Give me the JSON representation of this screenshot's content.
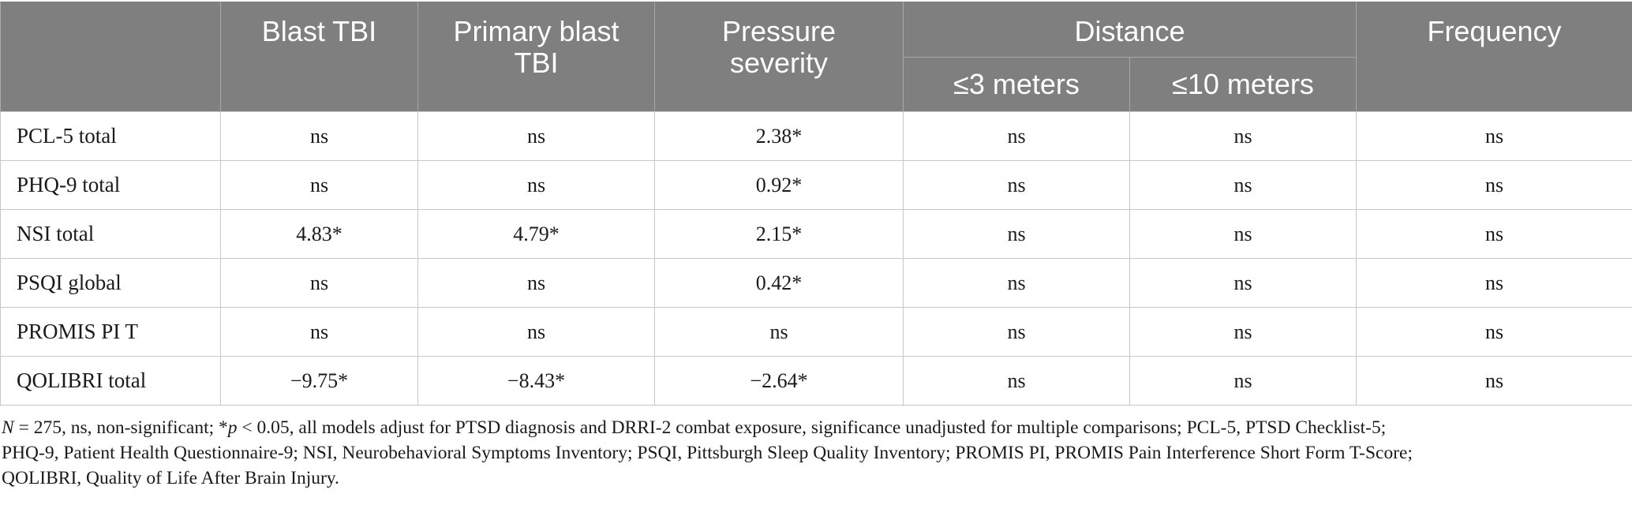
{
  "table": {
    "header": {
      "blank": "",
      "blast_tbi": "Blast TBI",
      "primary_blast_tbi_line1": "Primary blast",
      "primary_blast_tbi_line2": "TBI",
      "pressure_line1": "Pressure",
      "pressure_line2": "severity",
      "distance": "Distance",
      "distance_3": "≤3 meters",
      "distance_10": "≤10 meters",
      "frequency": "Frequency"
    },
    "rows": [
      {
        "label": "PCL-5 total",
        "cells": [
          "ns",
          "ns",
          "2.38*",
          "ns",
          "ns",
          "ns"
        ]
      },
      {
        "label": "PHQ-9 total",
        "cells": [
          "ns",
          "ns",
          "0.92*",
          "ns",
          "ns",
          "ns"
        ]
      },
      {
        "label": "NSI total",
        "cells": [
          "4.83*",
          "4.79*",
          "2.15*",
          "ns",
          "ns",
          "ns"
        ]
      },
      {
        "label": "PSQI global",
        "cells": [
          "ns",
          "ns",
          "0.42*",
          "ns",
          "ns",
          "ns"
        ]
      },
      {
        "label": "PROMIS PI T",
        "cells": [
          "ns",
          "ns",
          "ns",
          "ns",
          "ns",
          "ns"
        ]
      },
      {
        "label": "QOLIBRI total",
        "cells": [
          "−9.75*",
          "−8.43*",
          "−2.64*",
          "ns",
          "ns",
          "ns"
        ]
      }
    ]
  },
  "footnote": {
    "n_symbol": "N",
    "line1_a": " = 275, ns, non-significant; *",
    "p_symbol": "p",
    "line1_b": " < 0.05, all models adjust for PTSD diagnosis and DRRI-2 combat exposure, significance unadjusted for multiple comparisons; PCL-5, PTSD Checklist-5;",
    "line2": "PHQ-9, Patient Health Questionnaire-9; NSI, Neurobehavioral Symptoms Inventory; PSQI, Pittsburgh Sleep Quality Inventory; PROMIS PI, PROMIS Pain Interference Short Form T-Score;",
    "line3": "QOLIBRI, Quality of Life After Brain Injury."
  },
  "colors": {
    "header_bg": "#7f7f7f",
    "header_text": "#ffffff",
    "grid": "#c8c8c8"
  }
}
